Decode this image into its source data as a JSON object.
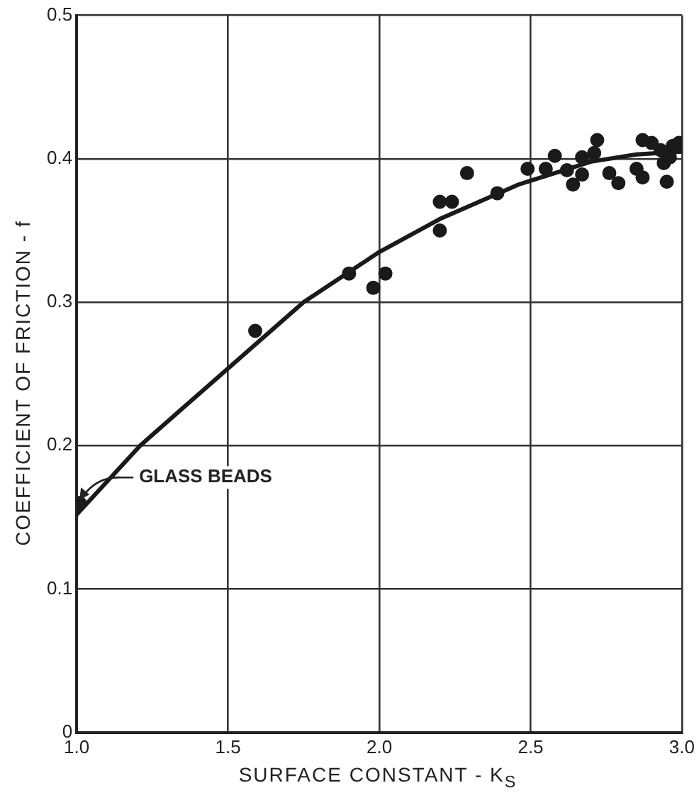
{
  "chart_data": {
    "type": "scatter",
    "xlabel": "SURFACE CONSTANT - K$_{S}$",
    "ylabel": "COEFFICIENT OF FRICTION - f",
    "xlim": [
      1.0,
      3.0
    ],
    "ylim": [
      0,
      0.5
    ],
    "xticks": [
      {
        "value": 1.0,
        "label": "1.0"
      },
      1.5,
      {
        "value": 2.0,
        "label": "2.0"
      },
      2.5,
      {
        "value": 3.0,
        "label": "3.0"
      }
    ],
    "yticks": [
      0,
      0.1,
      0.2,
      0.3,
      0.4,
      0.5
    ],
    "grid": true,
    "legend": false,
    "marker": "circle",
    "annotations": [
      {
        "text": "GLASS BEADS",
        "x": 1.0,
        "y": 0.16
      }
    ],
    "series": [
      {
        "color": "#1a1a1a",
        "x": [
          1.01,
          1.59,
          1.9,
          1.98,
          2.02,
          2.2,
          2.2,
          2.24,
          2.29,
          2.39,
          2.49,
          2.55,
          2.58,
          2.62,
          2.64,
          2.67,
          2.67,
          2.71,
          2.72,
          2.76,
          2.79,
          2.85,
          2.87,
          2.87,
          2.9,
          2.93,
          2.94,
          2.95,
          2.96,
          2.97,
          2.99
        ],
        "values": [
          0.16,
          0.28,
          0.32,
          0.31,
          0.32,
          0.35,
          0.37,
          0.37,
          0.39,
          0.376,
          0.393,
          0.393,
          0.402,
          0.392,
          0.382,
          0.401,
          0.389,
          0.404,
          0.413,
          0.39,
          0.383,
          0.393,
          0.387,
          0.413,
          0.411,
          0.406,
          0.397,
          0.384,
          0.401,
          0.409,
          0.411
        ]
      },
      {
        "type": "line",
        "color": "#1a1a1a",
        "marker": "none",
        "x": [
          1.0,
          1.21,
          1.42,
          1.75,
          2.0,
          2.2,
          2.46,
          2.7,
          2.85,
          3.0
        ],
        "values": [
          0.152,
          0.2,
          0.239,
          0.3,
          0.335,
          0.358,
          0.382,
          0.398,
          0.403,
          0.405
        ]
      }
    ]
  }
}
